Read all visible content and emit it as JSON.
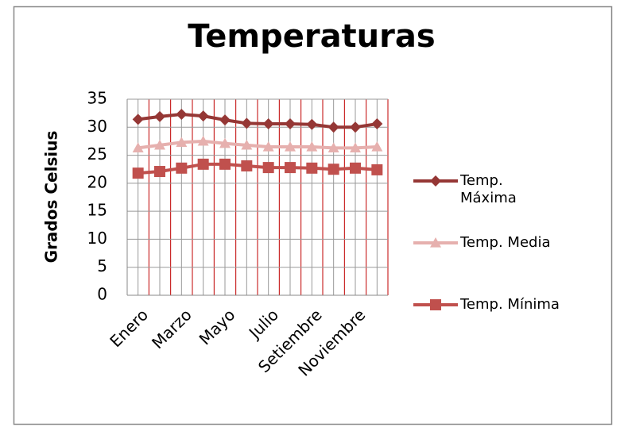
{
  "chart_data": {
    "type": "line",
    "title": "Temperaturas",
    "y_label": "Grados Celsius",
    "categories": [
      "Enero",
      null,
      "Marzo",
      null,
      "Mayo",
      null,
      "Julio",
      null,
      "Setiembre",
      null,
      "Noviembre",
      null
    ],
    "series": [
      {
        "name": "Temp. Máxima",
        "color": "#953735",
        "marker": "diamond",
        "values": [
          31.4,
          31.9,
          32.3,
          32.0,
          31.3,
          30.7,
          30.6,
          30.6,
          30.5,
          30.0,
          30.0,
          30.6
        ]
      },
      {
        "name": "Temp. Media",
        "color": "#e6b0ae",
        "marker": "triangle",
        "values": [
          26.3,
          26.8,
          27.3,
          27.5,
          27.1,
          26.8,
          26.5,
          26.5,
          26.5,
          26.3,
          26.3,
          26.5
        ]
      },
      {
        "name": "Temp. Mínima",
        "color": "#c0504d",
        "marker": "square",
        "values": [
          21.8,
          22.1,
          22.7,
          23.4,
          23.4,
          23.1,
          22.8,
          22.8,
          22.7,
          22.5,
          22.7,
          22.4
        ]
      }
    ],
    "ylim": [
      0,
      35
    ],
    "yticks": [
      0,
      5,
      10,
      15,
      20,
      25,
      30,
      35
    ],
    "grid": true,
    "legend": "right"
  }
}
